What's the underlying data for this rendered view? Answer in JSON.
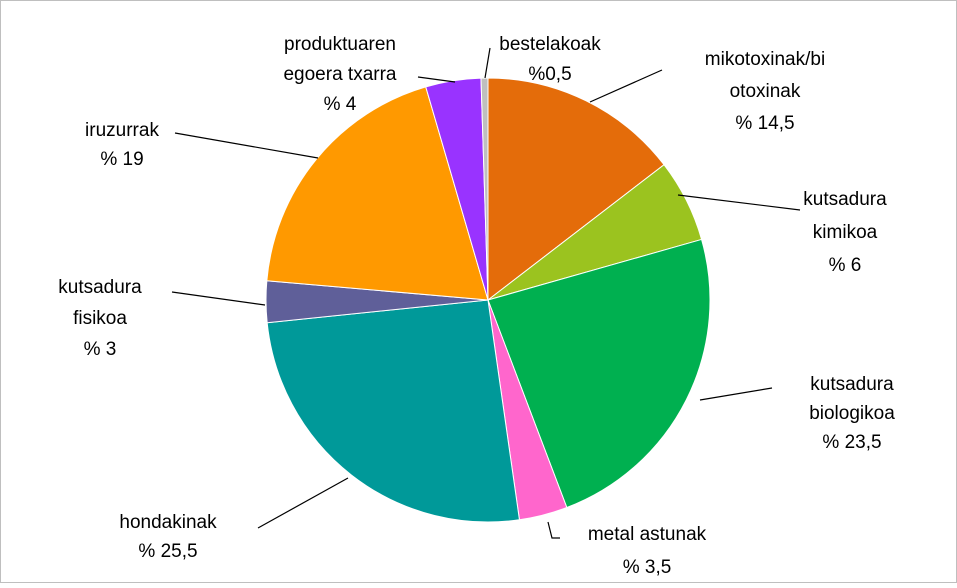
{
  "chart_data": {
    "type": "pie",
    "categories": [
      [
        "mikotoxinak/bi",
        "otoxinak"
      ],
      [
        "kutsadura",
        "kimikoa"
      ],
      [
        "kutsadura",
        "biologikoa"
      ],
      [
        "metal astunak"
      ],
      [
        "hondakinak"
      ],
      [
        "kutsadura",
        "fisikoa"
      ],
      [
        "iruzurrak"
      ],
      [
        "produktuaren",
        "egoera txarra"
      ],
      [
        "bestelakoak"
      ]
    ],
    "values": [
      14.5,
      6,
      23.5,
      3.5,
      25.5,
      3,
      19,
      4,
      0.5
    ],
    "value_labels": [
      "% 14,5",
      "% 6",
      "% 23,5",
      "% 3,5",
      "% 25,5",
      "% 3",
      "% 19",
      "% 4",
      "%0,5"
    ],
    "colors": [
      "#E46C0A",
      "#9BC31F",
      "#00B050",
      "#FF66CC",
      "#009999",
      "#5F5F99",
      "#FF9900",
      "#9933FF",
      "#BFBFBF"
    ]
  }
}
